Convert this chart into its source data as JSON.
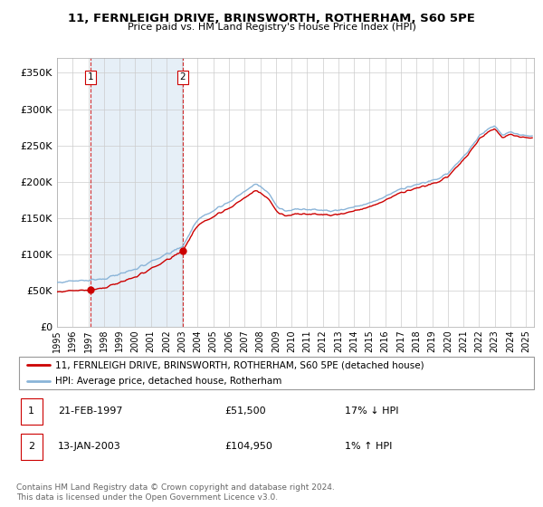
{
  "title": "11, FERNLEIGH DRIVE, BRINSWORTH, ROTHERHAM, S60 5PE",
  "subtitle": "Price paid vs. HM Land Registry's House Price Index (HPI)",
  "sale1_year": 1997.14,
  "sale1_price": 51500,
  "sale2_year": 2003.04,
  "sale2_price": 104950,
  "legend_line1": "11, FERNLEIGH DRIVE, BRINSWORTH, ROTHERHAM, S60 5PE (detached house)",
  "legend_line2": "HPI: Average price, detached house, Rotherham",
  "footer1": "Contains HM Land Registry data © Crown copyright and database right 2024.",
  "footer2": "This data is licensed under the Open Government Licence v3.0.",
  "hpi_color": "#8ab4d8",
  "price_color": "#cc0000",
  "bg_fill": "#dce9f5",
  "grid_color": "#cccccc",
  "spine_color": "#aaaaaa",
  "ymin": 0,
  "ymax": 370000,
  "xmin": 1995.0,
  "xmax": 2025.5,
  "hpi_anchors_t": [
    1995.0,
    1996.0,
    1997.0,
    1998.0,
    1999.0,
    2000.0,
    2001.0,
    2002.0,
    2003.0,
    2004.0,
    2005.0,
    2006.0,
    2007.0,
    2007.8,
    2008.5,
    2009.0,
    2009.5,
    2010.5,
    2011.5,
    2012.5,
    2013.5,
    2014.5,
    2015.5,
    2016.5,
    2017.5,
    2018.5,
    2019.5,
    2020.0,
    2020.8,
    2021.5,
    2022.0,
    2022.5,
    2023.0,
    2023.5,
    2024.0,
    2024.5,
    2025.3
  ],
  "hpi_anchors_v": [
    62000,
    63000,
    64500,
    67000,
    72000,
    80000,
    90000,
    100000,
    110000,
    148000,
    160000,
    172000,
    187000,
    197000,
    186000,
    168000,
    160000,
    162000,
    161000,
    159000,
    163000,
    168000,
    174000,
    185000,
    193000,
    199000,
    205000,
    212000,
    228000,
    248000,
    263000,
    272000,
    276000,
    265000,
    268000,
    265000,
    263000
  ],
  "noise_seed": 17
}
